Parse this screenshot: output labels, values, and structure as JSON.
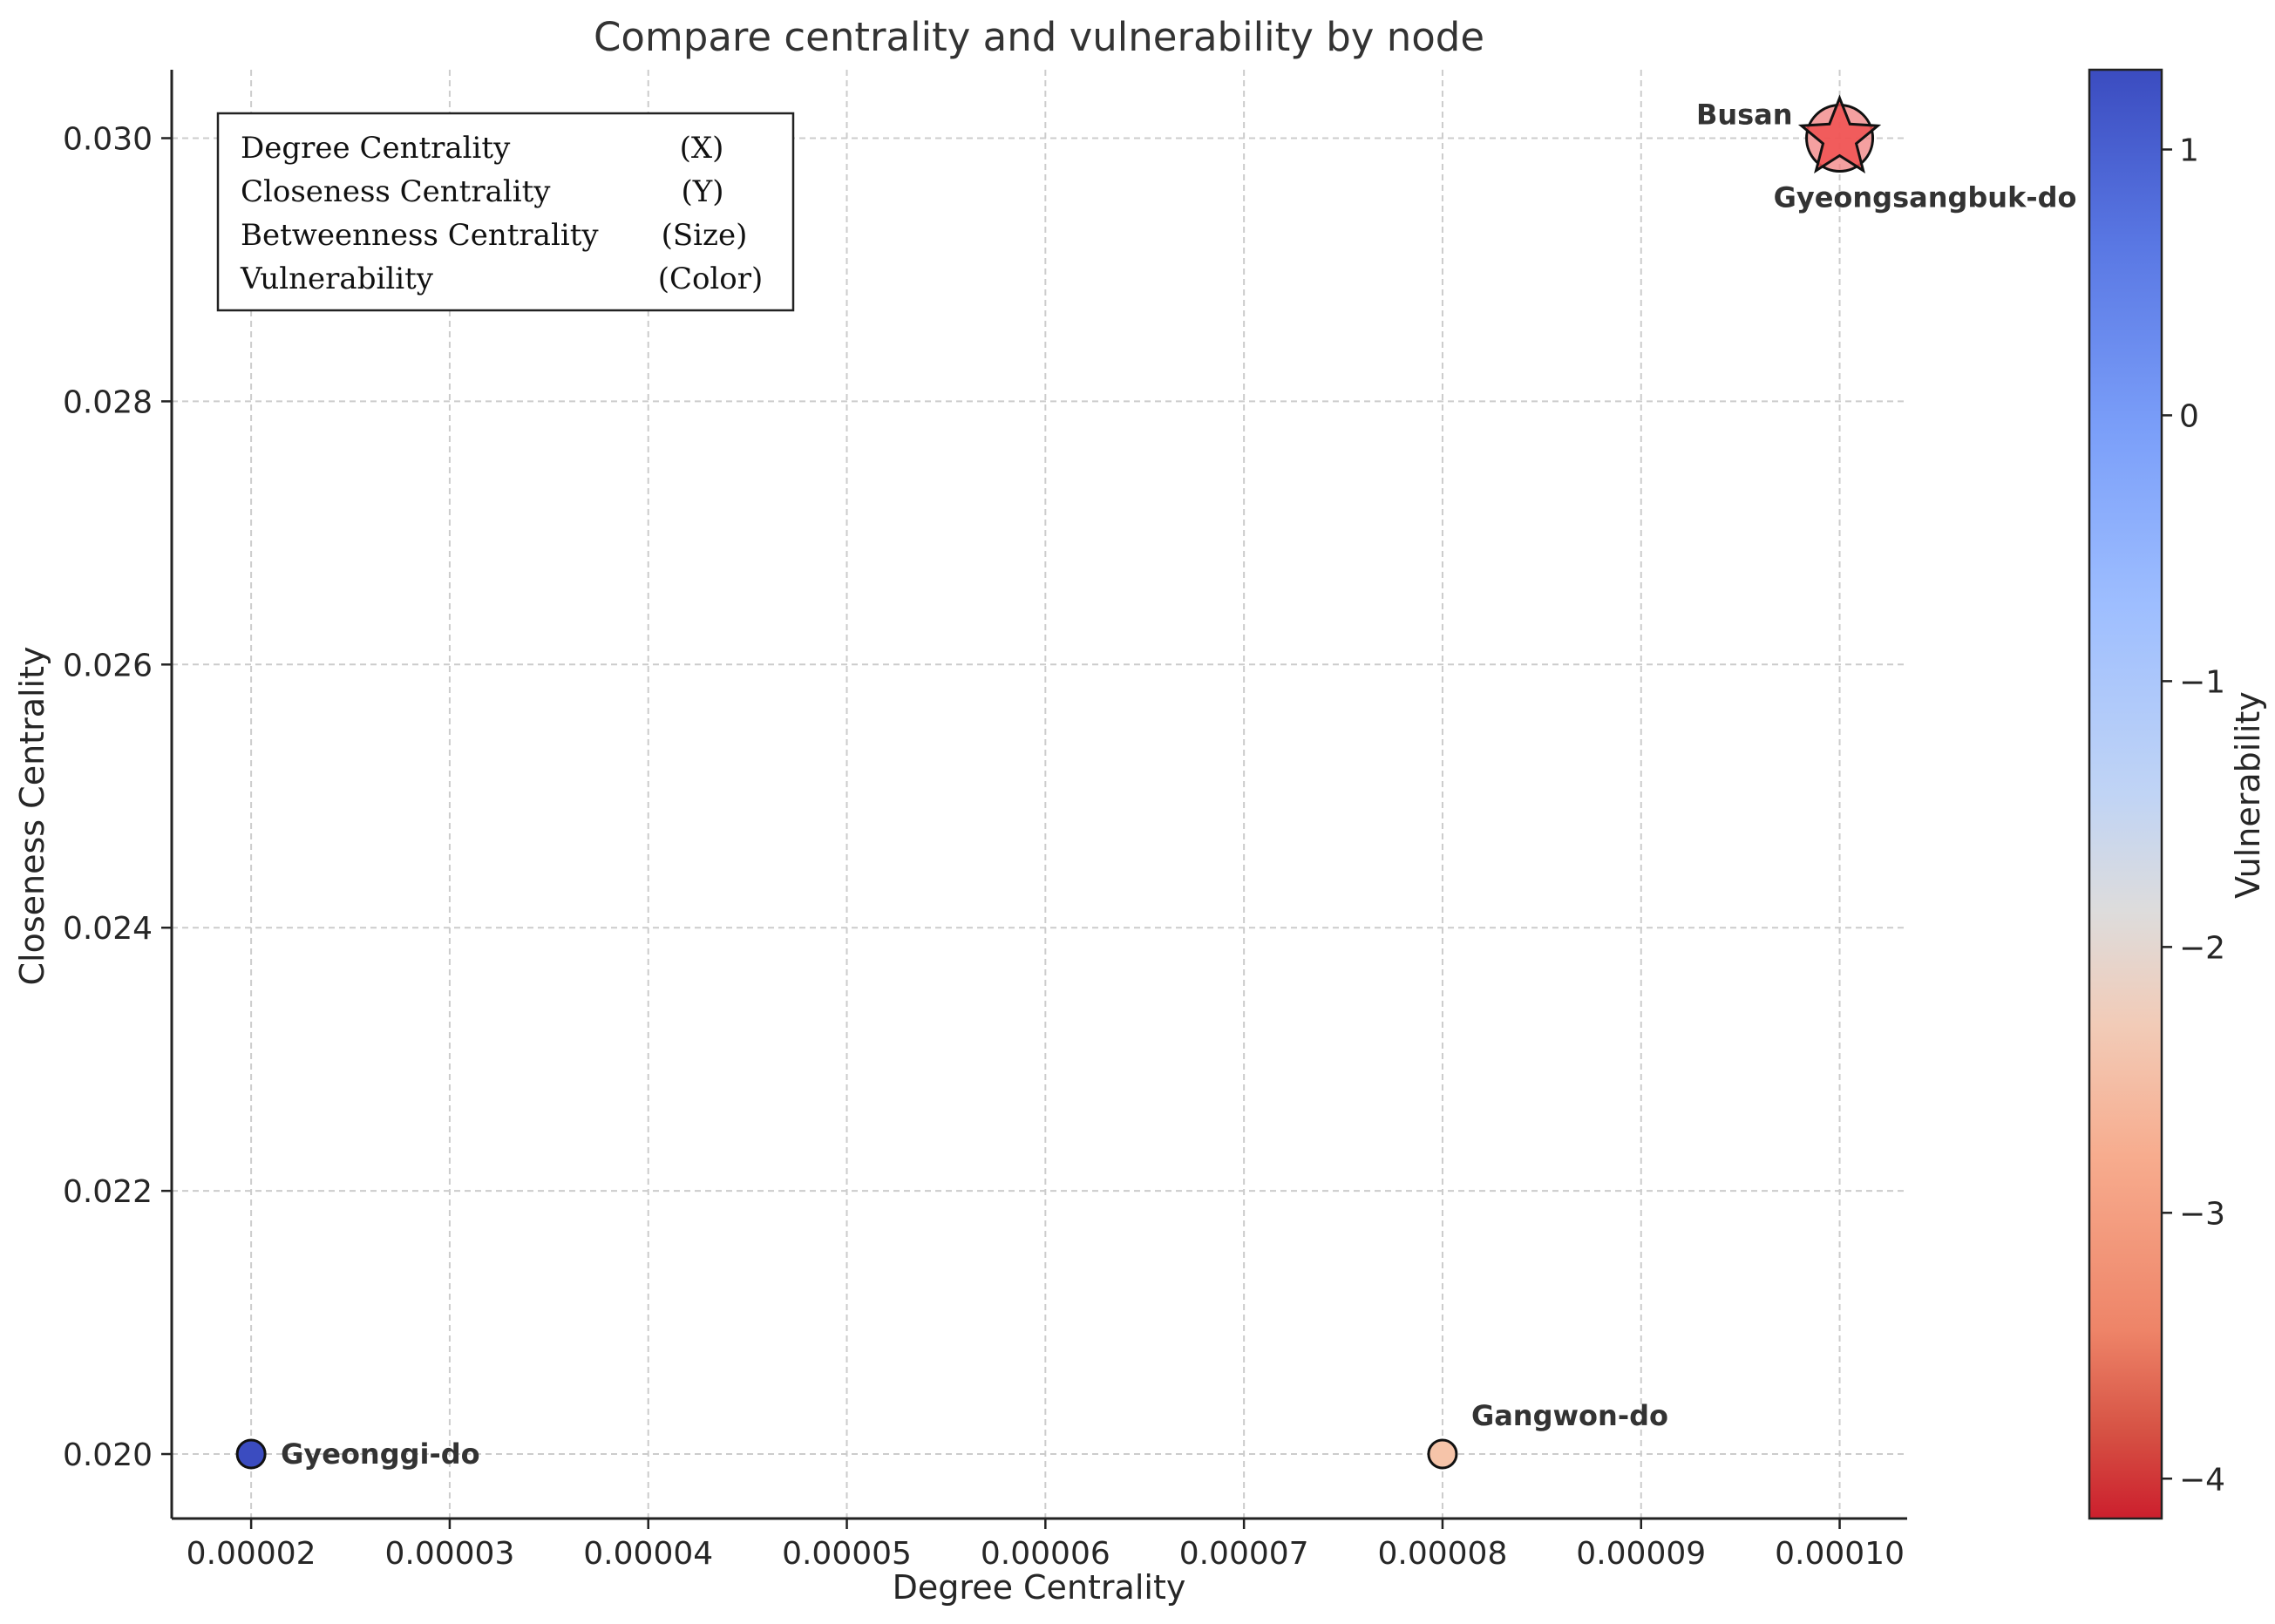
{
  "chart_data": {
    "type": "scatter",
    "title": "Compare centrality and vulnerability by node",
    "xlabel": "Degree Centrality",
    "ylabel": "Closeness Centrality",
    "xlim": [
      1.6e-05,
      0.0001034
    ],
    "ylim": [
      0.01951,
      0.03052
    ],
    "xticks": [
      2e-05,
      3e-05,
      4e-05,
      5e-05,
      6e-05,
      7e-05,
      8e-05,
      9e-05,
      0.0001
    ],
    "xtick_labels": [
      "0.00002",
      "0.00003",
      "0.00004",
      "0.00005",
      "0.00006",
      "0.00007",
      "0.00008",
      "0.00009",
      "0.00010"
    ],
    "yticks": [
      0.02,
      0.022,
      0.024,
      0.026,
      0.028,
      0.03
    ],
    "ytick_labels": [
      "0.020",
      "0.022",
      "0.024",
      "0.026",
      "0.028",
      "0.030"
    ],
    "grid": true,
    "points": [
      {
        "label": "Gyeonggi-do",
        "x": 2e-05,
        "y": 0.02,
        "vulnerability": 1.1,
        "color": "#3b4cc0",
        "marker": "circle",
        "size": "small",
        "label_pos": "right"
      },
      {
        "label": "Gangwon-do",
        "x": 8e-05,
        "y": 0.02,
        "vulnerability": -2.0,
        "color": "#f6c4a9",
        "marker": "circle",
        "size": "small",
        "label_pos": "above-right"
      },
      {
        "label": "Gyeongsangbuk-do",
        "x": 0.0001,
        "y": 0.03,
        "vulnerability": -3.0,
        "color": "#f08080",
        "marker": "circle",
        "size": "large",
        "label_pos": "below"
      },
      {
        "label": "Busan",
        "x": 0.0001,
        "y": 0.03,
        "vulnerability": -3.6,
        "color": "#f05050",
        "marker": "star",
        "size": "large",
        "label_pos": "left"
      }
    ],
    "legend_box": {
      "position": "top-left",
      "rows": [
        {
          "name": "Degree Centrality",
          "role": "(X)"
        },
        {
          "name": "Closeness Centrality",
          "role": "(Y)"
        },
        {
          "name": "Betweenness Centrality",
          "role": "(Size)"
        },
        {
          "name": "Vulnerability",
          "role": "(Color)"
        }
      ]
    },
    "colorbar": {
      "label": "Vulnerability",
      "range": [
        -4.15,
        1.3
      ],
      "ticks": [
        1,
        0,
        -1,
        -2,
        -3,
        -4
      ],
      "tick_labels": [
        "1",
        "0",
        "−1",
        "−2",
        "−3",
        "−4"
      ],
      "colormap": "coolwarm_r"
    }
  }
}
